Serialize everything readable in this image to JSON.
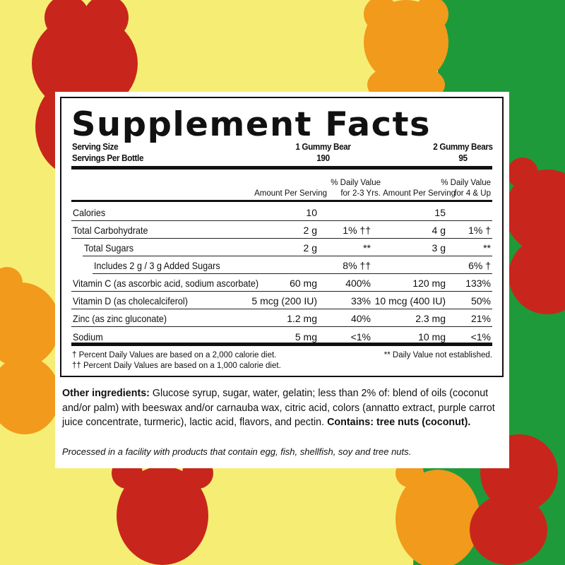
{
  "colors": {
    "yellow": "#f6ee74",
    "green": "#1f9a3a",
    "red_bear": "#c8261c",
    "orange_bear": "#f19a1c"
  },
  "title": "Supplement Facts",
  "serving": {
    "size_label": "Serving Size",
    "per_label": "Servings Per Bottle",
    "col1_size": "1 Gummy Bear",
    "col1_per": "190",
    "col2_size": "2 Gummy Bears",
    "col2_per": "95"
  },
  "headers": {
    "amt1": "Amount Per Serving",
    "dv1_line1": "% Daily Value",
    "dv1_line2": "for 2-3 Yrs.",
    "amt2": "Amount Per Serving",
    "dv2_line1": "% Daily Value",
    "dv2_line2": "for 4 & Up"
  },
  "rows": [
    {
      "label": "Calories",
      "a1": "10",
      "d1": "",
      "a2": "15",
      "d2": ""
    },
    {
      "label": "Total Carbohydrate",
      "a1": "2 g",
      "d1": "1% ††",
      "a2": "4 g",
      "d2": "1% †"
    },
    {
      "label": "Total Sugars",
      "a1": "2 g",
      "d1": "**",
      "a2": "3 g",
      "d2": "**"
    },
    {
      "label": "Includes 2 g / 3 g Added Sugars",
      "a1": "",
      "d1": "8% ††",
      "a2": "",
      "d2": "6% †"
    },
    {
      "label": "Vitamin C (as ascorbic acid, sodium ascorbate)",
      "a1": "60 mg",
      "d1": "400%",
      "a2": "120 mg",
      "d2": "133%"
    },
    {
      "label": "Vitamin D (as cholecalciferol)",
      "a1": "5 mcg (200 IU)",
      "d1": "33%",
      "a2": "10 mcg (400 IU)",
      "d2": "50%"
    },
    {
      "label": "Zinc (as zinc gluconate)",
      "a1": "1.2 mg",
      "d1": "40%",
      "a2": "2.3 mg",
      "d2": "21%"
    },
    {
      "label": "Sodium",
      "a1": "5 mg",
      "d1": "<1%",
      "a2": "10 mg",
      "d2": "<1%"
    }
  ],
  "footnotes": {
    "f1": "† Percent Daily Values are based on a 2,000 calorie diet.",
    "f2": "†† Percent Daily Values are based on a 1,000 calorie diet.",
    "f3": "** Daily Value not established."
  },
  "ingredients": {
    "label": "Other ingredients:",
    "text": " Glucose syrup, sugar, water, gelatin; less than 2% of: blend of oils (coconut and/or palm) with beeswax and/or carnauba wax, citric acid, colors (annatto extract, purple carrot juice concentrate, turmeric), lactic acid, flavors, and pectin. ",
    "contains": "Contains: tree nuts (coconut)."
  },
  "processed": "Processed in a facility with products that contain egg, fish,  shellfish, soy and tree nuts."
}
